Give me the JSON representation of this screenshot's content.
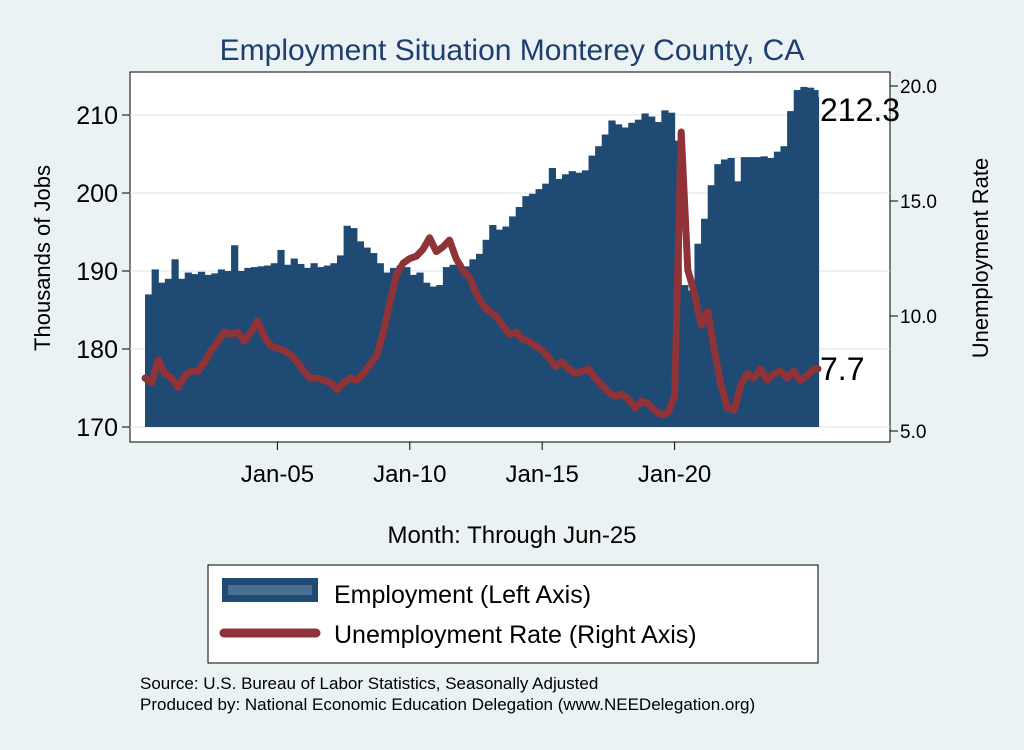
{
  "chart_data": {
    "type": "bar+line",
    "title": "Employment Situation Monterey  County, CA",
    "xlabel": "Month: Through Jun-25",
    "ylabel_left": "Thousands of Jobs",
    "ylabel_right": "Unemployment Rate",
    "x_range": [
      "2000-01",
      "2025-06"
    ],
    "x_ticks": [
      {
        "label": "Jan-05",
        "date": "2005-01"
      },
      {
        "label": "Jan-10",
        "date": "2010-01"
      },
      {
        "label": "Jan-15",
        "date": "2015-01"
      },
      {
        "label": "Jan-20",
        "date": "2020-01"
      }
    ],
    "y_left": {
      "range": [
        170,
        212.5
      ],
      "ticks": [
        "170",
        "180",
        "190",
        "200",
        "210"
      ]
    },
    "y_right": {
      "range": [
        5.0,
        20.0
      ],
      "ticks": [
        "5.0",
        "10.0",
        "15.0",
        "20.0"
      ]
    },
    "grid": true,
    "legend": {
      "placement": "bottom",
      "entries": [
        "Employment (Left Axis)",
        "Unemployment Rate (Right Axis)"
      ]
    },
    "colors": {
      "employment": "#1e4a73",
      "unemployment": "#8f3338",
      "background": "#eaf2f3",
      "plot_background": "#ffffff",
      "title": "#1e3e6e",
      "grid": "#dfe6ea"
    },
    "series": [
      {
        "name": "Employment (Left Axis)",
        "axis": "left",
        "style": "bar",
        "points": [
          [
            "2000-01",
            187.0
          ],
          [
            "2000-04",
            190.2
          ],
          [
            "2000-07",
            188.5
          ],
          [
            "2000-10",
            189.0
          ],
          [
            "2001-01",
            191.5
          ],
          [
            "2001-04",
            189.0
          ],
          [
            "2001-07",
            189.8
          ],
          [
            "2001-10",
            189.6
          ],
          [
            "2002-01",
            189.9
          ],
          [
            "2002-04",
            189.5
          ],
          [
            "2002-07",
            189.7
          ],
          [
            "2002-10",
            190.2
          ],
          [
            "2003-01",
            190.0
          ],
          [
            "2003-04",
            193.3
          ],
          [
            "2003-07",
            190.0
          ],
          [
            "2003-10",
            190.4
          ],
          [
            "2004-01",
            190.5
          ],
          [
            "2004-04",
            190.6
          ],
          [
            "2004-07",
            190.7
          ],
          [
            "2004-10",
            191.0
          ],
          [
            "2005-01",
            192.7
          ],
          [
            "2005-04",
            190.8
          ],
          [
            "2005-07",
            191.6
          ],
          [
            "2005-10",
            190.9
          ],
          [
            "2006-01",
            190.4
          ],
          [
            "2006-04",
            191.0
          ],
          [
            "2006-07",
            190.5
          ],
          [
            "2006-10",
            190.7
          ],
          [
            "2007-01",
            191.0
          ],
          [
            "2007-04",
            192.0
          ],
          [
            "2007-07",
            195.8
          ],
          [
            "2007-10",
            195.5
          ],
          [
            "2008-01",
            193.8
          ],
          [
            "2008-04",
            193.0
          ],
          [
            "2008-07",
            192.3
          ],
          [
            "2008-10",
            191.0
          ],
          [
            "2009-01",
            189.8
          ],
          [
            "2009-04",
            190.4
          ],
          [
            "2009-07",
            190.7
          ],
          [
            "2009-10",
            190.5
          ],
          [
            "2010-01",
            189.5
          ],
          [
            "2010-04",
            189.8
          ],
          [
            "2010-07",
            188.5
          ],
          [
            "2010-10",
            188.0
          ],
          [
            "2011-01",
            188.2
          ],
          [
            "2011-04",
            190.5
          ],
          [
            "2011-07",
            190.8
          ],
          [
            "2011-10",
            191.0
          ],
          [
            "2012-01",
            190.6
          ],
          [
            "2012-04",
            191.5
          ],
          [
            "2012-07",
            192.2
          ],
          [
            "2012-10",
            194.0
          ],
          [
            "2013-01",
            195.9
          ],
          [
            "2013-04",
            195.3
          ],
          [
            "2013-07",
            195.7
          ],
          [
            "2013-10",
            197.0
          ],
          [
            "2014-01",
            198.2
          ],
          [
            "2014-04",
            199.6
          ],
          [
            "2014-07",
            199.9
          ],
          [
            "2014-10",
            200.5
          ],
          [
            "2015-01",
            201.2
          ],
          [
            "2015-04",
            203.2
          ],
          [
            "2015-07",
            201.8
          ],
          [
            "2015-10",
            202.4
          ],
          [
            "2016-01",
            202.8
          ],
          [
            "2016-04",
            202.6
          ],
          [
            "2016-07",
            202.9
          ],
          [
            "2016-10",
            204.8
          ],
          [
            "2017-01",
            206.0
          ],
          [
            "2017-04",
            207.5
          ],
          [
            "2017-07",
            209.3
          ],
          [
            "2017-10",
            208.8
          ],
          [
            "2018-01",
            208.4
          ],
          [
            "2018-04",
            209.0
          ],
          [
            "2018-07",
            209.4
          ],
          [
            "2018-10",
            210.2
          ],
          [
            "2019-01",
            209.8
          ],
          [
            "2019-04",
            209.1
          ],
          [
            "2019-07",
            210.6
          ],
          [
            "2019-10",
            210.3
          ],
          [
            "2020-01",
            206.7
          ],
          [
            "2020-04",
            188.2
          ],
          [
            "2020-07",
            187.5
          ],
          [
            "2020-10",
            193.5
          ],
          [
            "2021-01",
            196.7
          ],
          [
            "2021-04",
            201.0
          ],
          [
            "2021-07",
            203.7
          ],
          [
            "2021-10",
            204.3
          ],
          [
            "2022-01",
            204.5
          ],
          [
            "2022-04",
            201.5
          ],
          [
            "2022-07",
            204.6
          ],
          [
            "2022-10",
            204.6
          ],
          [
            "2023-01",
            204.6
          ],
          [
            "2023-04",
            204.7
          ],
          [
            "2023-07",
            204.5
          ],
          [
            "2023-10",
            205.3
          ],
          [
            "2024-01",
            206.0
          ],
          [
            "2024-04",
            210.5
          ],
          [
            "2024-07",
            213.2
          ],
          [
            "2024-10",
            213.6
          ],
          [
            "2025-01",
            213.5
          ],
          [
            "2025-04",
            213.2
          ],
          [
            "2025-06",
            212.3
          ]
        ]
      },
      {
        "name": "Unemployment Rate (Right Axis)",
        "axis": "right",
        "style": "line",
        "points": [
          [
            "2000-01",
            7.3
          ],
          [
            "2000-04",
            7.1
          ],
          [
            "2000-07",
            8.1
          ],
          [
            "2000-10",
            7.5
          ],
          [
            "2001-01",
            7.3
          ],
          [
            "2001-04",
            6.9
          ],
          [
            "2001-07",
            7.4
          ],
          [
            "2001-10",
            7.6
          ],
          [
            "2002-01",
            7.6
          ],
          [
            "2002-04",
            8.0
          ],
          [
            "2002-07",
            8.5
          ],
          [
            "2002-10",
            8.9
          ],
          [
            "2003-01",
            9.3
          ],
          [
            "2003-04",
            9.2
          ],
          [
            "2003-07",
            9.3
          ],
          [
            "2003-10",
            8.9
          ],
          [
            "2004-01",
            9.3
          ],
          [
            "2004-04",
            9.8
          ],
          [
            "2004-07",
            9.1
          ],
          [
            "2004-10",
            8.7
          ],
          [
            "2005-01",
            8.6
          ],
          [
            "2005-04",
            8.5
          ],
          [
            "2005-07",
            8.3
          ],
          [
            "2005-10",
            8.0
          ],
          [
            "2006-01",
            7.6
          ],
          [
            "2006-04",
            7.3
          ],
          [
            "2006-07",
            7.3
          ],
          [
            "2006-10",
            7.2
          ],
          [
            "2007-01",
            7.1
          ],
          [
            "2007-04",
            6.8
          ],
          [
            "2007-07",
            7.1
          ],
          [
            "2007-10",
            7.3
          ],
          [
            "2008-01",
            7.2
          ],
          [
            "2008-04",
            7.5
          ],
          [
            "2008-07",
            7.9
          ],
          [
            "2008-10",
            8.3
          ],
          [
            "2009-01",
            9.3
          ],
          [
            "2009-04",
            10.6
          ],
          [
            "2009-07",
            11.8
          ],
          [
            "2009-10",
            12.3
          ],
          [
            "2010-01",
            12.5
          ],
          [
            "2010-04",
            12.6
          ],
          [
            "2010-07",
            12.9
          ],
          [
            "2010-10",
            13.4
          ],
          [
            "2011-01",
            12.8
          ],
          [
            "2011-04",
            13.0
          ],
          [
            "2011-07",
            13.3
          ],
          [
            "2011-10",
            12.5
          ],
          [
            "2012-01",
            12.0
          ],
          [
            "2012-04",
            11.7
          ],
          [
            "2012-07",
            11.0
          ],
          [
            "2012-10",
            10.5
          ],
          [
            "2013-01",
            10.2
          ],
          [
            "2013-04",
            10.0
          ],
          [
            "2013-07",
            9.6
          ],
          [
            "2013-10",
            9.2
          ],
          [
            "2014-01",
            9.3
          ],
          [
            "2014-04",
            9.0
          ],
          [
            "2014-07",
            8.9
          ],
          [
            "2014-10",
            8.7
          ],
          [
            "2015-01",
            8.5
          ],
          [
            "2015-04",
            8.2
          ],
          [
            "2015-07",
            7.8
          ],
          [
            "2015-10",
            8.0
          ],
          [
            "2016-01",
            7.7
          ],
          [
            "2016-04",
            7.5
          ],
          [
            "2016-07",
            7.6
          ],
          [
            "2016-10",
            7.7
          ],
          [
            "2017-01",
            7.3
          ],
          [
            "2017-04",
            7.0
          ],
          [
            "2017-07",
            6.7
          ],
          [
            "2017-10",
            6.5
          ],
          [
            "2018-01",
            6.6
          ],
          [
            "2018-04",
            6.4
          ],
          [
            "2018-07",
            6.0
          ],
          [
            "2018-10",
            6.3
          ],
          [
            "2019-01",
            6.2
          ],
          [
            "2019-04",
            5.9
          ],
          [
            "2019-07",
            5.7
          ],
          [
            "2019-10",
            5.8
          ],
          [
            "2020-01",
            6.5
          ],
          [
            "2020-04",
            18.0
          ],
          [
            "2020-07",
            12.0
          ],
          [
            "2020-10",
            11.0
          ],
          [
            "2021-01",
            9.6
          ],
          [
            "2021-04",
            10.2
          ],
          [
            "2021-07",
            8.5
          ],
          [
            "2021-10",
            7.0
          ],
          [
            "2022-01",
            6.0
          ],
          [
            "2022-04",
            5.9
          ],
          [
            "2022-07",
            7.0
          ],
          [
            "2022-10",
            7.5
          ],
          [
            "2023-01",
            7.3
          ],
          [
            "2023-04",
            7.7
          ],
          [
            "2023-07",
            7.2
          ],
          [
            "2023-10",
            7.5
          ],
          [
            "2024-01",
            7.6
          ],
          [
            "2024-04",
            7.3
          ],
          [
            "2024-07",
            7.6
          ],
          [
            "2024-10",
            7.2
          ],
          [
            "2025-01",
            7.4
          ],
          [
            "2025-04",
            7.7
          ],
          [
            "2025-06",
            7.7
          ]
        ]
      }
    ],
    "annotations": [
      {
        "text": "212.3",
        "series": "Employment (Left Axis)"
      },
      {
        "text": "7.7",
        "series": "Unemployment Rate (Right Axis)"
      }
    ],
    "source_lines": [
      "Source: U.S. Bureau of Labor Statistics, Seasonally Adjusted",
      "Produced by: National Economic Education Delegation (www.NEEDelegation.org)"
    ]
  }
}
